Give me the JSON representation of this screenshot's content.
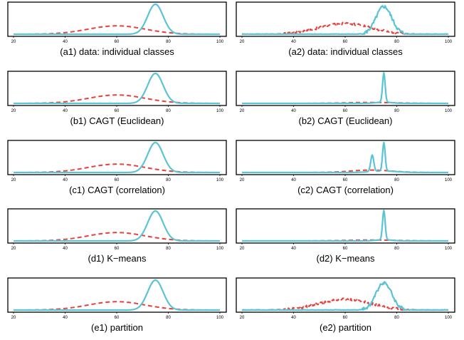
{
  "chart_data": [
    {
      "id": "a1",
      "type": "line",
      "title": "(a1) data: individual classes",
      "xlim": [
        20,
        100
      ],
      "x_ticks": [
        "20",
        "40",
        "60",
        "80",
        "100"
      ],
      "series": [
        {
          "color": "#e8403a",
          "style": "dashed",
          "shape": "gaussian",
          "center": 60,
          "width": 11,
          "peak": 0.28
        },
        {
          "color": "#5bc4d4",
          "style": "solid",
          "shape": "gaussian",
          "center": 75,
          "width": 3,
          "peak": 1.0
        }
      ]
    },
    {
      "id": "a2",
      "type": "line",
      "title": "(a2) data: individual classes",
      "xlim": [
        20,
        100
      ],
      "x_ticks": [
        "20",
        "40",
        "60",
        "80",
        "100"
      ],
      "series": [
        {
          "color": "#e8403a",
          "style": "dashed",
          "shape": "gaussian",
          "center": 60,
          "width": 10,
          "peak": 0.36,
          "noise": 0.08
        },
        {
          "color": "#5bc4d4",
          "style": "solid",
          "shape": "gaussian",
          "center": 75,
          "width": 3,
          "peak": 0.92,
          "noise": 0.12
        }
      ]
    },
    {
      "id": "b1",
      "type": "line",
      "title": "(b1) CAGT (Euclidean)",
      "xlim": [
        20,
        100
      ],
      "x_ticks": [
        "20",
        "40",
        "60",
        "80",
        "100"
      ],
      "series": [
        {
          "color": "#e8403a",
          "style": "dashed",
          "shape": "gaussian",
          "center": 60,
          "width": 11,
          "peak": 0.28
        },
        {
          "color": "#5bc4d4",
          "style": "solid",
          "shape": "gaussian",
          "center": 75,
          "width": 3,
          "peak": 1.0
        }
      ]
    },
    {
      "id": "b2",
      "type": "line",
      "title": "(b2) CAGT (Euclidean)",
      "xlim": [
        20,
        100
      ],
      "x_ticks": [
        "20",
        "40",
        "60",
        "80",
        "100"
      ],
      "series": [
        {
          "color": "#e8403a",
          "style": "dashed",
          "shape": "gaussian",
          "center": 70,
          "width": 10,
          "peak": 0.03
        },
        {
          "color": "#5bc4d4",
          "style": "solid",
          "shape": "spike",
          "center": 75,
          "width": 0.5,
          "peak": 0.98
        }
      ]
    },
    {
      "id": "c1",
      "type": "line",
      "title": "(c1) CAGT (correlation)",
      "xlim": [
        20,
        100
      ],
      "x_ticks": [
        "20",
        "40",
        "60",
        "80",
        "100"
      ],
      "series": [
        {
          "color": "#e8403a",
          "style": "dashed",
          "shape": "gaussian",
          "center": 60,
          "width": 11,
          "peak": 0.28
        },
        {
          "color": "#5bc4d4",
          "style": "solid",
          "shape": "gaussian",
          "center": 75,
          "width": 3,
          "peak": 1.0
        }
      ]
    },
    {
      "id": "c2",
      "type": "line",
      "title": "(c2) CAGT (correlation)",
      "xlim": [
        20,
        100
      ],
      "x_ticks": [
        "20",
        "40",
        "60",
        "80",
        "100"
      ],
      "series": [
        {
          "color": "#e8403a",
          "style": "dashed",
          "shape": "gaussian",
          "center": 70,
          "width": 8,
          "peak": 0.08
        },
        {
          "color": "#5bc4d4",
          "style": "solid",
          "shape": "double-spike",
          "center": 75,
          "width": 0.5,
          "peak": 0.95
        }
      ]
    },
    {
      "id": "d1",
      "type": "line",
      "title": "(d1) K−means",
      "xlim": [
        20,
        100
      ],
      "x_ticks": [
        "20",
        "40",
        "60",
        "80",
        "100"
      ],
      "series": [
        {
          "color": "#e8403a",
          "style": "dashed",
          "shape": "gaussian",
          "center": 60,
          "width": 11,
          "peak": 0.28
        },
        {
          "color": "#5bc4d4",
          "style": "solid",
          "shape": "gaussian",
          "center": 75,
          "width": 3,
          "peak": 1.0
        }
      ]
    },
    {
      "id": "d2",
      "type": "line",
      "title": "(d2) K−means",
      "xlim": [
        20,
        100
      ],
      "x_ticks": [
        "20",
        "40",
        "60",
        "80",
        "100"
      ],
      "series": [
        {
          "color": "#e8403a",
          "style": "dashed",
          "shape": "gaussian",
          "center": 70,
          "width": 10,
          "peak": 0.03
        },
        {
          "color": "#5bc4d4",
          "style": "solid",
          "shape": "spike",
          "center": 75,
          "width": 0.5,
          "peak": 0.98
        }
      ]
    },
    {
      "id": "e1",
      "type": "line",
      "title": "(e1) partition",
      "xlim": [
        20,
        100
      ],
      "x_ticks": [
        "20",
        "40",
        "60",
        "80",
        "100"
      ],
      "series": [
        {
          "color": "#e8403a",
          "style": "dashed",
          "shape": "gaussian",
          "center": 60,
          "width": 11,
          "peak": 0.28
        },
        {
          "color": "#5bc4d4",
          "style": "solid",
          "shape": "gaussian",
          "center": 75,
          "width": 3,
          "peak": 1.0
        }
      ]
    },
    {
      "id": "e2",
      "type": "line",
      "title": "(e2) partition",
      "xlim": [
        20,
        100
      ],
      "x_ticks": [
        "20",
        "40",
        "60",
        "80",
        "100"
      ],
      "series": [
        {
          "color": "#e8403a",
          "style": "dashed",
          "shape": "gaussian",
          "center": 60,
          "width": 10,
          "peak": 0.36,
          "noise": 0.08
        },
        {
          "color": "#5bc4d4",
          "style": "solid",
          "shape": "gaussian",
          "center": 75,
          "width": 3,
          "peak": 0.92,
          "noise": 0.12
        }
      ]
    }
  ]
}
